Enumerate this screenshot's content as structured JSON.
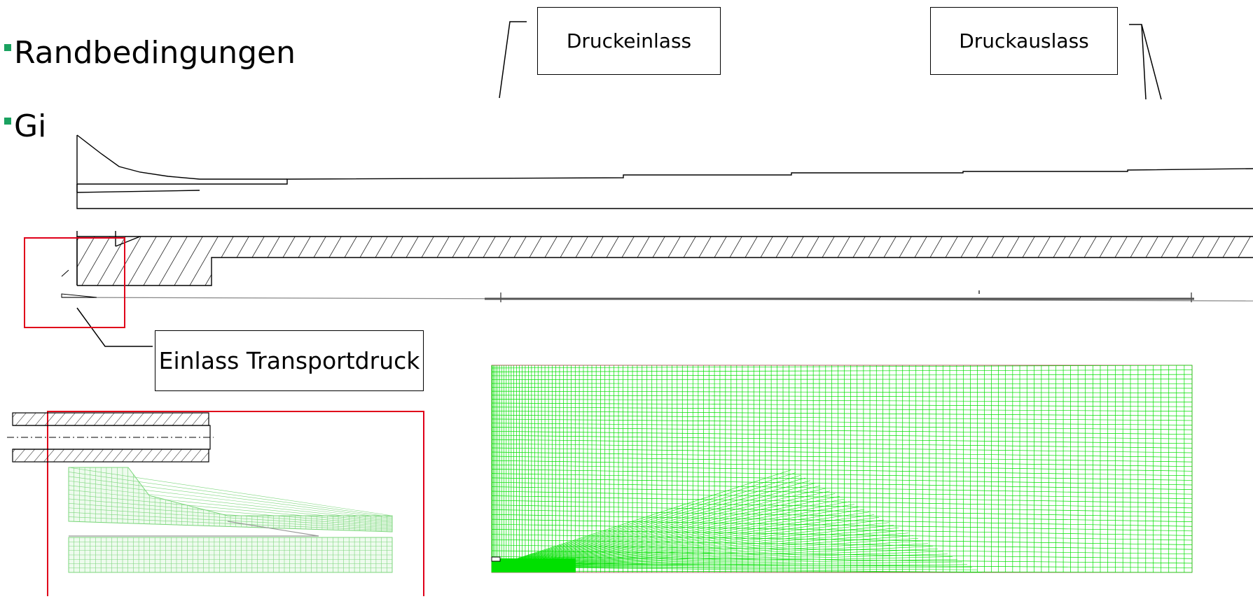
{
  "bullets": [
    {
      "text": "Randbedingungen"
    },
    {
      "text": "Gi"
    }
  ],
  "labels": {
    "druckeinlass": "Druckeinlass",
    "druckauslass": "Druckauslass",
    "einlass_transportdruck": "Einlass Transportdruck"
  },
  "colors": {
    "mesh_green": "#00e000",
    "highlight_red": "#e0001a",
    "bullet_green": "#1aa260"
  }
}
